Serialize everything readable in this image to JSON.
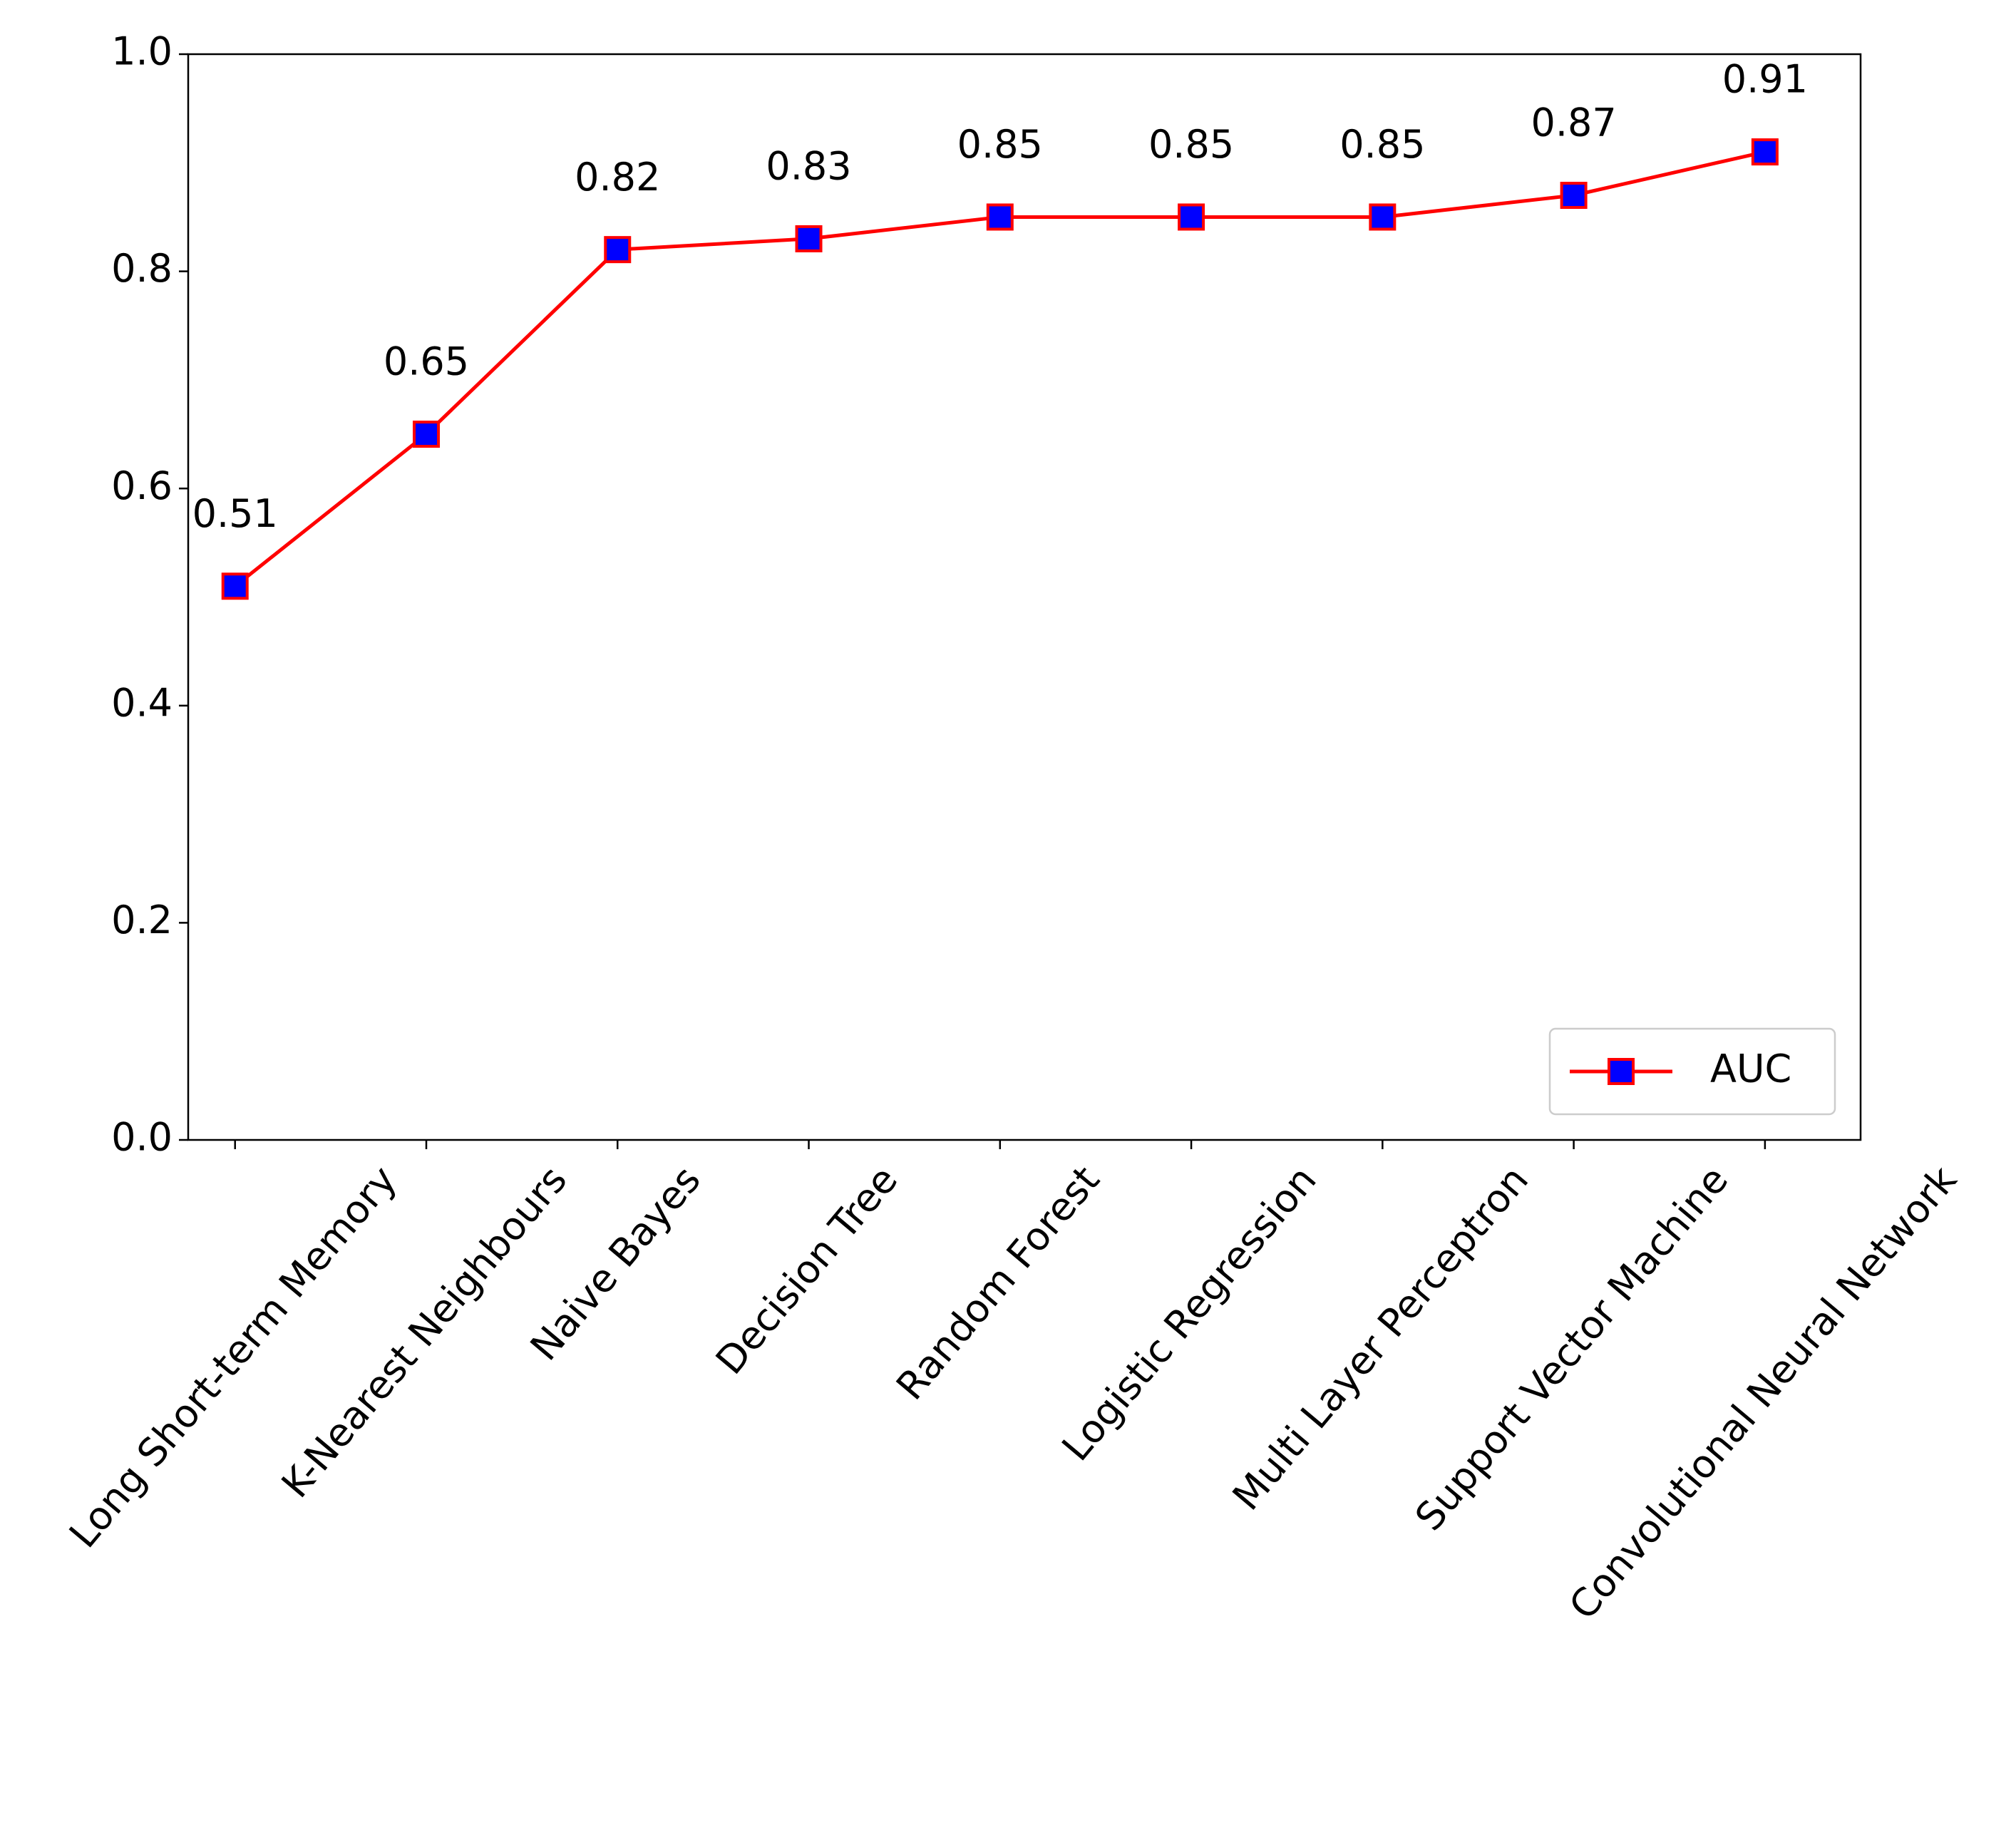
{
  "chart_data": {
    "type": "line",
    "categories": [
      "Long Short-term Memory",
      "K-Nearest Neighbours",
      "Naive Bayes",
      "Decision Tree",
      "Random Forest",
      "Logistic Regression",
      "Multi Layer Perceptron",
      "Support Vector Machine",
      "Convolutional Neural Network"
    ],
    "series": [
      {
        "name": "AUC",
        "color": "red",
        "marker_color": "blue",
        "values": [
          0.51,
          0.65,
          0.82,
          0.83,
          0.85,
          0.85,
          0.85,
          0.87,
          0.91
        ]
      }
    ],
    "ylim": [
      0,
      1
    ],
    "yticks": [
      {
        "value": 0,
        "label": "0.0"
      },
      0.2,
      0.4,
      0.6,
      0.8,
      {
        "value": 1,
        "label": "1.0"
      }
    ],
    "legend": "lower right",
    "grid": false
  }
}
